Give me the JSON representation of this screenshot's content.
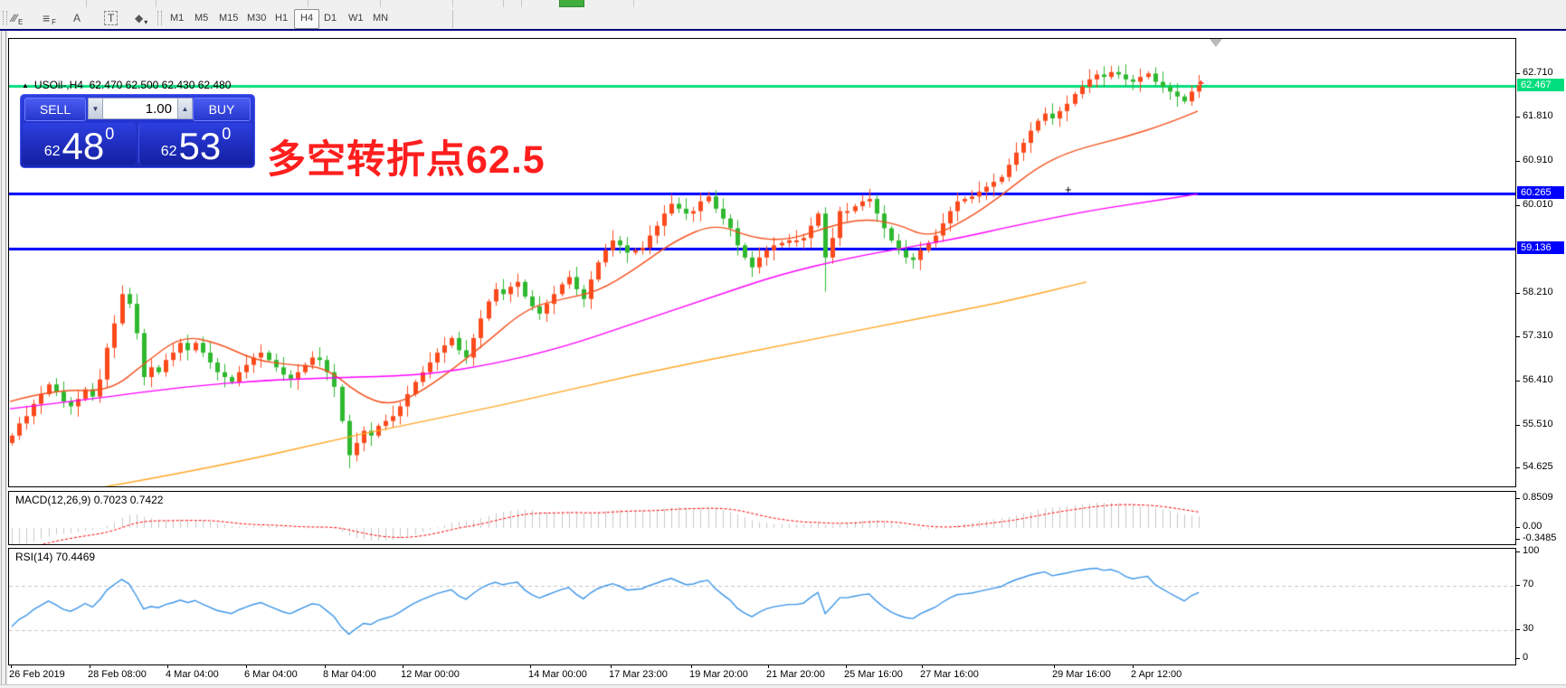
{
  "toolbar": {
    "tools": [
      {
        "name": "equidistant-channel",
        "glyph": "∕∕∕",
        "sub": "E"
      },
      {
        "name": "fibonacci",
        "glyph": "≡",
        "sub": "F"
      },
      {
        "name": "text-label",
        "glyph": "A",
        "sub": ""
      },
      {
        "name": "text",
        "glyph": "T",
        "sub": ""
      },
      {
        "name": "arrows",
        "glyph": "◆",
        "sub": "▾"
      }
    ],
    "timeframes": [
      "M1",
      "M5",
      "M15",
      "M30",
      "H1",
      "H4",
      "D1",
      "W1",
      "MN"
    ],
    "active_timeframe": "H4"
  },
  "window": {
    "header": {
      "collapse_icon": "▲",
      "symbol_period": "USOil-,H4",
      "ohlc_text": "62.470 62.500 62.430 62.480"
    },
    "trade_panel": {
      "sell_label": "SELL",
      "buy_label": "BUY",
      "volume": "1.00",
      "spin_down": "▼",
      "spin_up": "▲",
      "sell_price": {
        "small": "62",
        "big": "48",
        "sup": "0"
      },
      "buy_price": {
        "small": "62",
        "big": "53",
        "sup": "0"
      }
    },
    "annotation": {
      "text": "多空转折点62.5",
      "color": "#ff1e1e"
    }
  },
  "chart_data": {
    "type": "candlestick",
    "symbol": "USOil-",
    "period": "H4",
    "current_ohlc": {
      "open": 62.47,
      "high": 62.5,
      "low": 62.43,
      "close": 62.48
    },
    "price_range": [
      54.26,
      63.43
    ],
    "price_axis_ticks": [
      62.71,
      61.81,
      60.91,
      60.01,
      58.21,
      57.31,
      56.41,
      55.51,
      54.625
    ],
    "hlines": [
      {
        "price": 62.467,
        "label": "62.467",
        "color": "#00dd7c",
        "width": 3
      },
      {
        "price": 60.265,
        "label": "60.265",
        "color": "#0000ff",
        "width": 3
      },
      {
        "price": 59.136,
        "label": "59.136",
        "color": "#0000ff",
        "width": 3
      }
    ],
    "first_open": 55.15,
    "closes": [
      55.3,
      55.55,
      55.7,
      55.95,
      56.15,
      56.35,
      56.2,
      56.0,
      55.9,
      56.05,
      56.25,
      56.1,
      56.45,
      57.1,
      57.6,
      58.2,
      58.0,
      57.4,
      56.5,
      56.7,
      56.6,
      56.85,
      57.0,
      57.2,
      57.05,
      57.2,
      57.0,
      56.8,
      56.6,
      56.5,
      56.4,
      56.6,
      56.75,
      56.9,
      57.0,
      56.85,
      56.7,
      56.55,
      56.45,
      56.6,
      56.75,
      56.9,
      56.85,
      56.6,
      56.3,
      55.6,
      54.9,
      55.15,
      55.4,
      55.3,
      55.5,
      55.6,
      55.7,
      55.9,
      56.15,
      56.4,
      56.6,
      56.8,
      57.0,
      57.15,
      57.3,
      57.05,
      56.9,
      57.3,
      57.7,
      58.05,
      58.3,
      58.2,
      58.35,
      58.45,
      58.15,
      57.95,
      57.8,
      58.0,
      58.2,
      58.4,
      58.55,
      58.3,
      58.1,
      58.5,
      58.85,
      59.1,
      59.3,
      59.2,
      59.05,
      59.1,
      59.15,
      59.4,
      59.6,
      59.85,
      60.05,
      59.95,
      59.85,
      59.9,
      60.1,
      60.2,
      59.95,
      59.75,
      59.55,
      59.2,
      58.95,
      58.75,
      58.95,
      59.1,
      59.2,
      59.25,
      59.3,
      59.3,
      59.35,
      59.6,
      59.85,
      58.95,
      59.35,
      59.9,
      59.9,
      60.0,
      60.1,
      60.15,
      59.85,
      59.55,
      59.3,
      59.1,
      58.95,
      58.9,
      59.1,
      59.25,
      59.4,
      59.65,
      59.9,
      60.1,
      60.15,
      60.2,
      60.3,
      60.4,
      60.5,
      60.6,
      60.85,
      61.1,
      61.3,
      61.55,
      61.75,
      61.9,
      61.8,
      61.95,
      62.1,
      62.3,
      62.45,
      62.6,
      62.7,
      62.65,
      62.75,
      62.7,
      62.6,
      62.55,
      62.65,
      62.72,
      62.55,
      62.45,
      62.35,
      62.25,
      62.15,
      62.35,
      62.48
    ],
    "wick_overrides": {
      "15": {
        "h": 58.38
      },
      "46": {
        "l": 54.63
      },
      "90": {
        "h": 60.25
      },
      "95": {
        "h": 60.3
      },
      "101": {
        "l": 58.55
      },
      "111": {
        "l": 58.25
      },
      "123": {
        "l": 58.72
      },
      "150": {
        "h": 62.88
      }
    },
    "moving_averages": [
      {
        "name": "ma-fast",
        "color": "#f4511e",
        "points": [
          [
            10,
            56.0
          ],
          [
            60,
            56.25
          ],
          [
            120,
            56.2
          ],
          [
            160,
            56.8
          ],
          [
            200,
            57.35
          ],
          [
            240,
            57.2
          ],
          [
            280,
            56.85
          ],
          [
            320,
            56.75
          ],
          [
            360,
            56.7
          ],
          [
            395,
            56.15
          ],
          [
            430,
            55.9
          ],
          [
            470,
            56.25
          ],
          [
            530,
            57.1
          ],
          [
            580,
            57.9
          ],
          [
            620,
            58.1
          ],
          [
            660,
            58.25
          ],
          [
            700,
            58.7
          ],
          [
            745,
            59.3
          ],
          [
            790,
            59.65
          ],
          [
            830,
            59.35
          ],
          [
            870,
            59.3
          ],
          [
            910,
            59.55
          ],
          [
            950,
            59.75
          ],
          [
            990,
            59.65
          ],
          [
            1025,
            59.35
          ],
          [
            1065,
            59.7
          ],
          [
            1105,
            60.2
          ],
          [
            1145,
            60.8
          ],
          [
            1185,
            61.15
          ],
          [
            1240,
            61.4
          ],
          [
            1290,
            61.7
          ],
          [
            1323,
            61.95
          ]
        ]
      },
      {
        "name": "ma-mid",
        "color": "#ff00ff",
        "points": [
          [
            10,
            55.85
          ],
          [
            100,
            56.05
          ],
          [
            200,
            56.3
          ],
          [
            300,
            56.45
          ],
          [
            400,
            56.5
          ],
          [
            470,
            56.55
          ],
          [
            540,
            56.75
          ],
          [
            620,
            57.1
          ],
          [
            700,
            57.6
          ],
          [
            780,
            58.1
          ],
          [
            860,
            58.6
          ],
          [
            940,
            58.95
          ],
          [
            1000,
            59.15
          ],
          [
            1060,
            59.35
          ],
          [
            1120,
            59.6
          ],
          [
            1200,
            59.9
          ],
          [
            1270,
            60.1
          ],
          [
            1323,
            60.25
          ]
        ]
      },
      {
        "name": "ma-slow",
        "color": "#ffa726",
        "points": [
          [
            115,
            54.25
          ],
          [
            250,
            54.7
          ],
          [
            400,
            55.35
          ],
          [
            550,
            55.9
          ],
          [
            700,
            56.55
          ],
          [
            850,
            57.1
          ],
          [
            1000,
            57.65
          ],
          [
            1100,
            58.0
          ],
          [
            1200,
            58.45
          ]
        ]
      }
    ],
    "time_labels": [
      [
        10,
        "26 Feb 2019"
      ],
      [
        97,
        "28 Feb 08:00"
      ],
      [
        183,
        "4 Mar 04:00"
      ],
      [
        270,
        "6 Mar 04:00"
      ],
      [
        357,
        "8 Mar 04:00"
      ],
      [
        443,
        "12 Mar 00:00"
      ],
      [
        584,
        "14 Mar 00:00"
      ],
      [
        673,
        "17 Mar 23:00"
      ],
      [
        762,
        "19 Mar 20:00"
      ],
      [
        847,
        "21 Mar 20:00"
      ],
      [
        933,
        "25 Mar 16:00"
      ],
      [
        1017,
        "27 Mar 16:00"
      ],
      [
        1163,
        "29 Mar 16:00"
      ],
      [
        1250,
        "2 Apr 12:00"
      ]
    ],
    "macd": {
      "label": "MACD(12,26,9) 0.7023 0.7422",
      "params": [
        12,
        26,
        9
      ],
      "value_main": 0.7023,
      "value_signal": 0.7422,
      "axis_ticks": [
        0.8509,
        0.0,
        -0.3485
      ],
      "hist_color": "#c8c8c8",
      "signal_color": "#ff0000"
    },
    "rsi": {
      "label": "RSI(14) 70.4469",
      "period": 14,
      "value": 70.4469,
      "levels": [
        100,
        70,
        30,
        0
      ],
      "dashed_levels": [
        70,
        30
      ],
      "line_color": "#3d95e8"
    },
    "colors": {
      "up": "#fb4a1c",
      "down": "#2eb82e",
      "background": "#ffffff",
      "border": "#000000"
    },
    "markers": {
      "crosshair": "+",
      "price_tick": "+"
    }
  }
}
